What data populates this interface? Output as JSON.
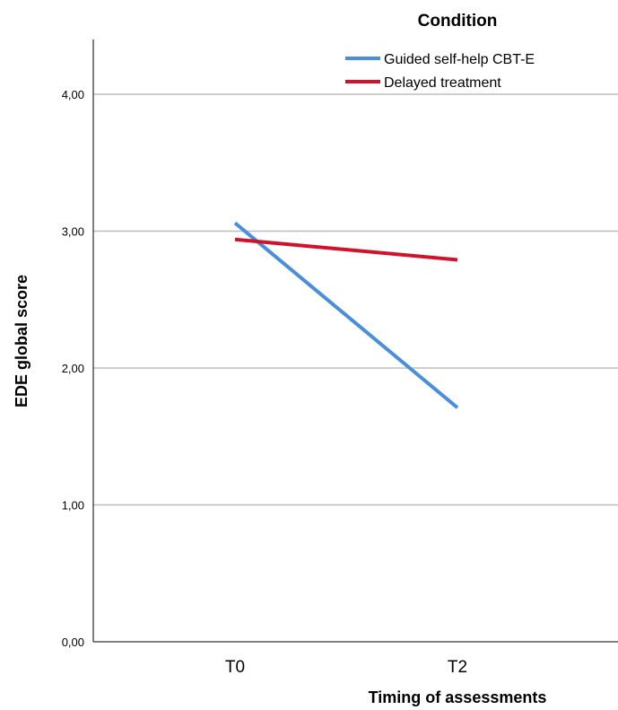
{
  "chart_data": {
    "type": "line",
    "title": "",
    "xlabel": "Timing of assessments",
    "ylabel": "EDE global score",
    "categories": [
      "T0",
      "T2"
    ],
    "ylim": [
      0,
      4.4
    ],
    "yticks": [
      0,
      1,
      2,
      3,
      4
    ],
    "ytick_labels": [
      "0,00",
      "1,00",
      "2,00",
      "3,00",
      "4,00"
    ],
    "grid": true,
    "legend": {
      "title": "Condition",
      "placement": "top-right"
    },
    "series": [
      {
        "name": "Guided self-help CBT-E",
        "values": [
          3.06,
          1.71
        ],
        "color": "#4a8fdc"
      },
      {
        "name": "Delayed treatment",
        "values": [
          2.94,
          2.79
        ],
        "color": "#d0122c"
      }
    ]
  }
}
